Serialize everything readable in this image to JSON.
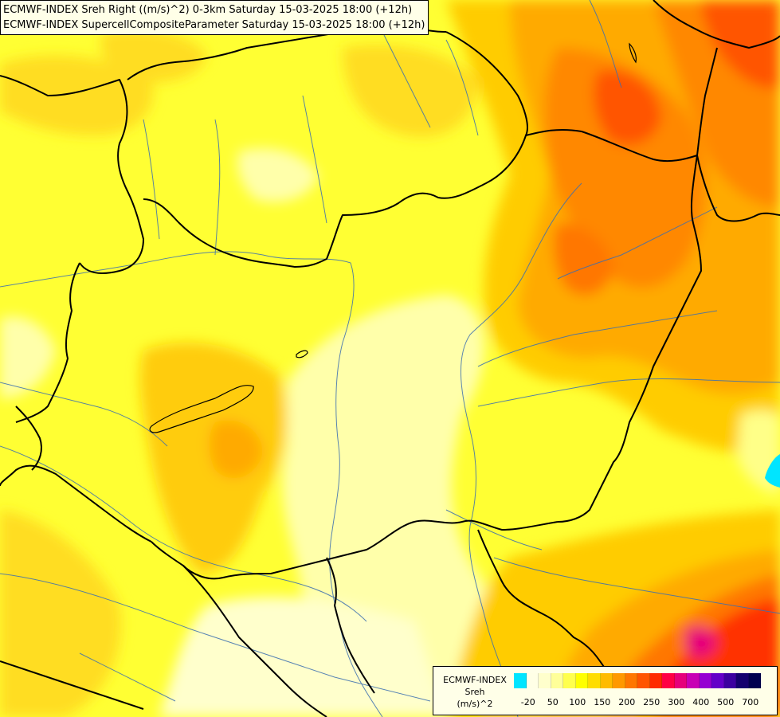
{
  "title": {
    "line1": "ECMWF-INDEX Sreh Right ((m/s)^2) 0-3km Saturday 15-03-2025 18:00 (+12h)",
    "line2": "ECMWF-INDEX SupercellCompositeParameter Saturday 15-03-2025 18:00 (+12h)"
  },
  "legend": {
    "source": "ECMWF-INDEX",
    "variable": "Sreh",
    "unit": "(m/s)^2",
    "ticks": [
      "-20",
      "50",
      "100",
      "150",
      "200",
      "250",
      "300",
      "400",
      "500",
      "700"
    ],
    "swatches": [
      "#00e5ff",
      "#ffffe6",
      "#ffffcc",
      "#ffff99",
      "#ffff4d",
      "#ffff00",
      "#ffdd00",
      "#ffbb00",
      "#ff9900",
      "#ff7700",
      "#ff5500",
      "#ff2a00",
      "#ff0044",
      "#e6007a",
      "#c800b4",
      "#9600d2",
      "#6400c8",
      "#3c00a0",
      "#14006e",
      "#000050"
    ]
  },
  "colors": {
    "map_background": "#ffff33",
    "border_line": "#000000",
    "river_line": "#3c6fb0"
  }
}
